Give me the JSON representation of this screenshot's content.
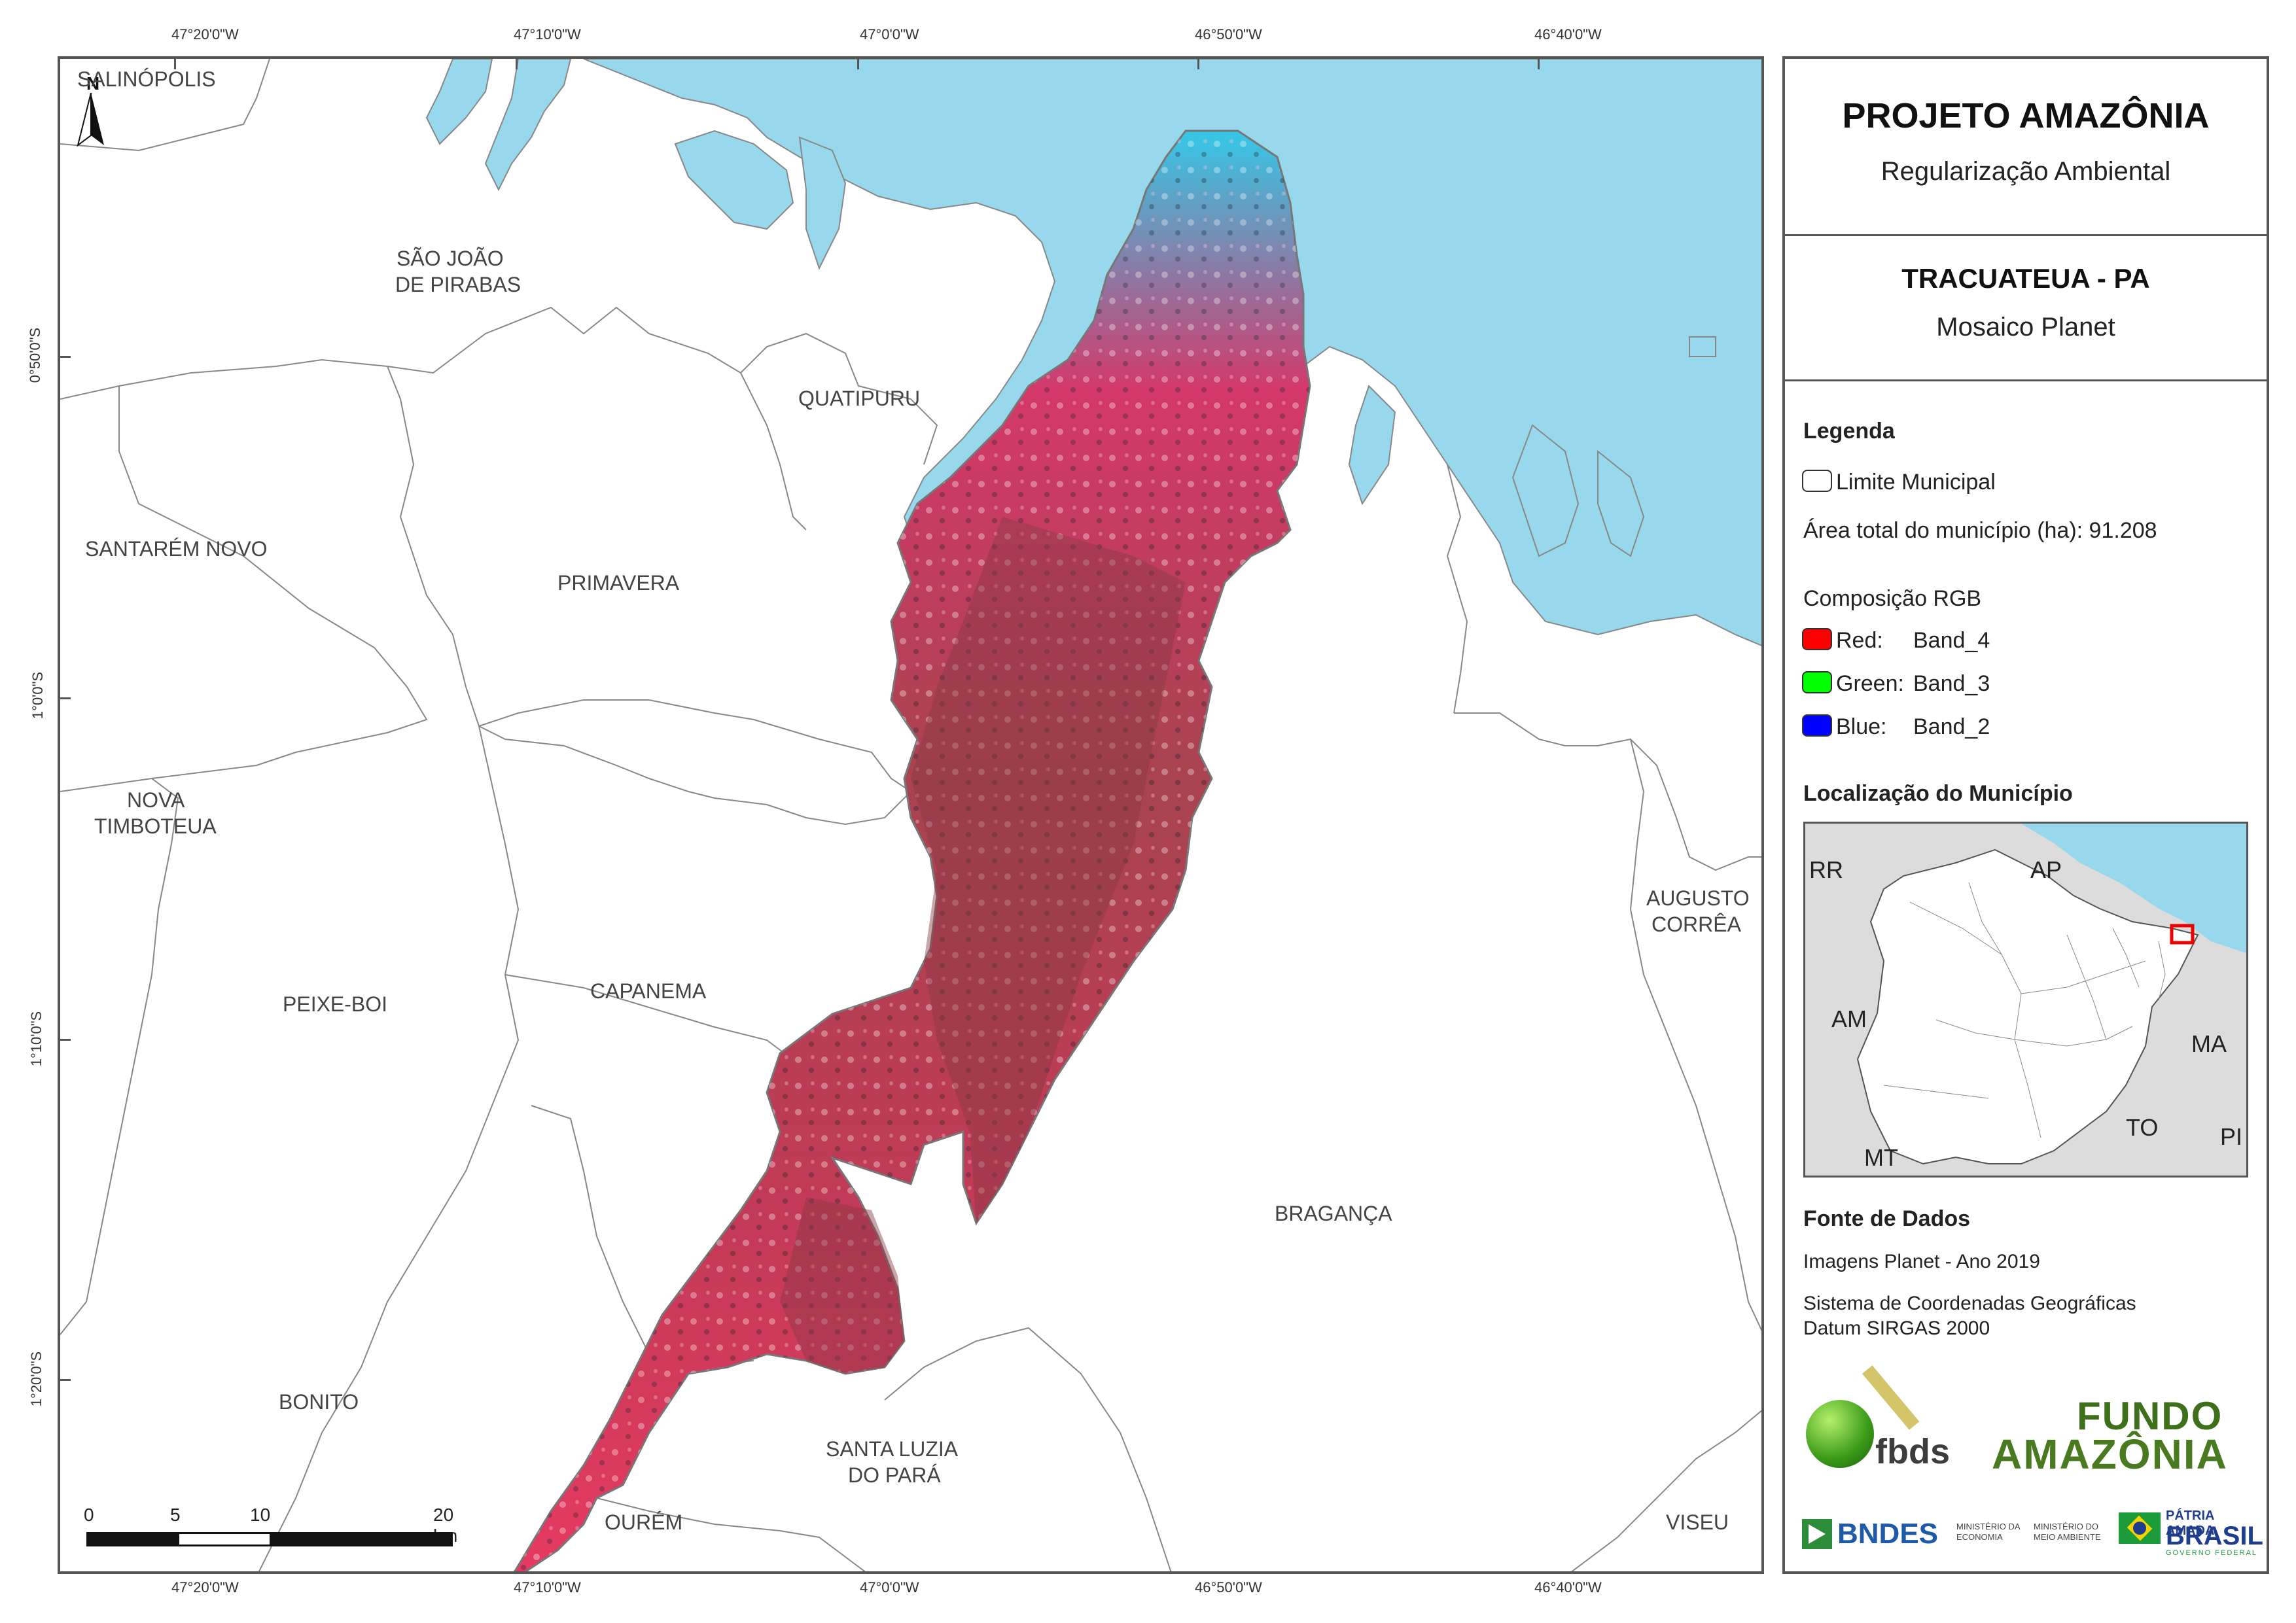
{
  "map": {
    "coords_top": [
      "47°20'0\"W",
      "47°10'0\"W",
      "47°0'0\"W",
      "46°50'0\"W",
      "46°40'0\"W"
    ],
    "coords_bottom": [
      "47°20'0\"W",
      "47°10'0\"W",
      "47°0'0\"W",
      "46°50'0\"W",
      "46°40'0\"W"
    ],
    "coords_left": [
      "0°50'0\"S",
      "1°0'0\"S",
      "1°10'0\"S",
      "1°20'0\"S"
    ],
    "north_label": "N",
    "municipalities": {
      "salinopolis": "SALINÓPOLIS",
      "sao_joao_1": "SÃO JOÃO",
      "sao_joao_2": "DE PIRABAS",
      "quatipuru": "QUATIPURU",
      "santarem_novo": "SANTARÉM NOVO",
      "primavera": "PRIMAVERA",
      "nova_timboteua_1": "NOVA",
      "nova_timboteua_2": "TIMBOTEUA",
      "capanema": "CAPANEMA",
      "peixe_boi": "PEIXE-BOI",
      "augusto_correa_1": "AUGUSTO",
      "augusto_correa_2": "CORRÊA",
      "braganca": "BRAGANÇA",
      "bonito": "BONITO",
      "santa_luzia_1": "SANTA LUZIA",
      "santa_luzia_2": "DO PARÁ",
      "ourem": "OURÉM",
      "viseu": "VISEU"
    },
    "scale": {
      "labels": [
        "0",
        "5",
        "10",
        "20 km"
      ]
    },
    "colors": {
      "water": "#97d8ec",
      "boundary": "#888888",
      "imagery_red": "#e8375f",
      "imagery_dark": "#9a3e4c",
      "imagery_cyan": "#35c8e8"
    }
  },
  "panel": {
    "title": "PROJETO AMAZÔNIA",
    "subtitle": "Regularização Ambiental",
    "municipality": "TRACUATEUA - PA",
    "mosaic": "Mosaico Planet",
    "legend_title": "Legenda",
    "legend_limit": "Limite Municipal",
    "legend_area": "Área total do município (ha): 91.208",
    "rgb_title": "Composição RGB",
    "rgb": [
      {
        "label": "Red:",
        "band": "Band_4",
        "color": "#ff0000"
      },
      {
        "label": "Green:",
        "band": "Band_3",
        "color": "#00ff00"
      },
      {
        "label": "Blue:",
        "band": "Band_2",
        "color": "#0000ff"
      }
    ],
    "location_title": "Localização do Município",
    "inset_labels": [
      "RR",
      "AP",
      "AM",
      "MA",
      "TO",
      "MT",
      "PI"
    ],
    "sources_title": "Fonte de Dados",
    "sources_line1": "Imagens Planet - Ano 2019",
    "sources_line2": "Sistema de Coordenadas Geográficas",
    "sources_line3": "Datum SIRGAS 2000",
    "logo_fbds": "fbds",
    "logo_fundo_1": "FUNDO",
    "logo_fundo_2": "AMAZÔNIA",
    "logo_bndes": "BNDES",
    "logo_min_economia": "MINISTÉRIO DA ECONOMIA",
    "logo_min_ambiente": "MINISTÉRIO DO MEIO AMBIENTE",
    "logo_patria_1": "PÁTRIA AMADA",
    "logo_patria_2": "BRASIL",
    "logo_patria_3": "GOVERNO FEDERAL"
  }
}
